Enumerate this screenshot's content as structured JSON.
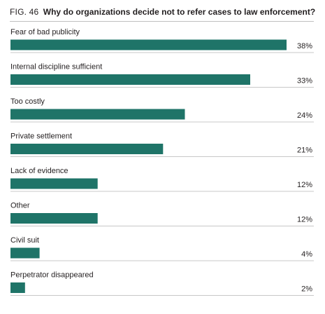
{
  "figure": {
    "number": "FIG. 46",
    "title": "Why do organizations decide not to refer cases to law enforcement?"
  },
  "colors": {
    "bar": "#1f7468",
    "divider": "#c8c8c8",
    "text": "#231f20"
  },
  "chart_data": {
    "type": "bar",
    "orientation": "horizontal",
    "title": "Why do organizations decide not to refer cases to law enforcement?",
    "categories": [
      "Fear of bad publicity",
      "Internal discipline sufficient",
      "Too costly",
      "Private settlement",
      "Lack of evidence",
      "Other",
      "Civil suit",
      "Perpetrator disappeared"
    ],
    "values": [
      38,
      33,
      24,
      21,
      12,
      12,
      4,
      2
    ],
    "value_labels": [
      "38%",
      "33%",
      "24%",
      "21%",
      "12%",
      "12%",
      "4%",
      "2%"
    ],
    "unit": "%",
    "xlim": [
      0,
      40
    ],
    "grid": false,
    "legend": "none"
  }
}
